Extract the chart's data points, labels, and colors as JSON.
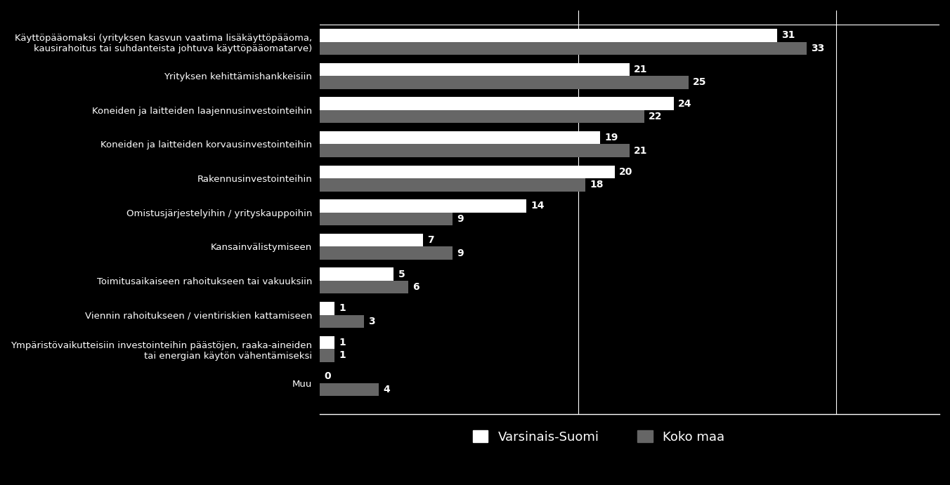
{
  "categories": [
    "Käyttöpääomaksi (yrityksen kasvun vaatima lisäkäyttöpääoma,\nkausirahoitus tai suhdanteista johtuva käyttöpääomatarve)",
    "Yrityksen kehittämishankkeisiin",
    "Koneiden ja laitteiden laajennusinvestointeihin",
    "Koneiden ja laitteiden korvausinvestointeihin",
    "Rakennusinvestointeihin",
    "Omistusjärjestelyihin / yrityskauppoihin",
    "Kansainvälistymiseen",
    "Toimitusaikaiseen rahoitukseen tai vakuuksiin",
    "Viennin rahoitukseen / vientiriskien kattamiseen",
    "Ympäristövaikutteisiin investointeihin päästöjen, raaka-aineiden\ntai energian käytön vähentämiseksi",
    "Muu"
  ],
  "varsinais_suomi": [
    31,
    21,
    24,
    19,
    20,
    14,
    7,
    5,
    1,
    1,
    0
  ],
  "koko_maa": [
    33,
    25,
    22,
    21,
    18,
    9,
    9,
    6,
    3,
    1,
    4
  ],
  "color_varsinais": "#ffffff",
  "color_koko_maa": "#666666",
  "background_color": "#000000",
  "text_color": "#ffffff",
  "bar_height": 0.38,
  "legend_label_1": "Varsinais-Suomi",
  "legend_label_2": "Koko maa",
  "xlim": [
    0,
    42
  ],
  "vline_positions": [
    17.5,
    35.0
  ],
  "figsize": [
    13.52,
    6.91
  ],
  "dpi": 100
}
